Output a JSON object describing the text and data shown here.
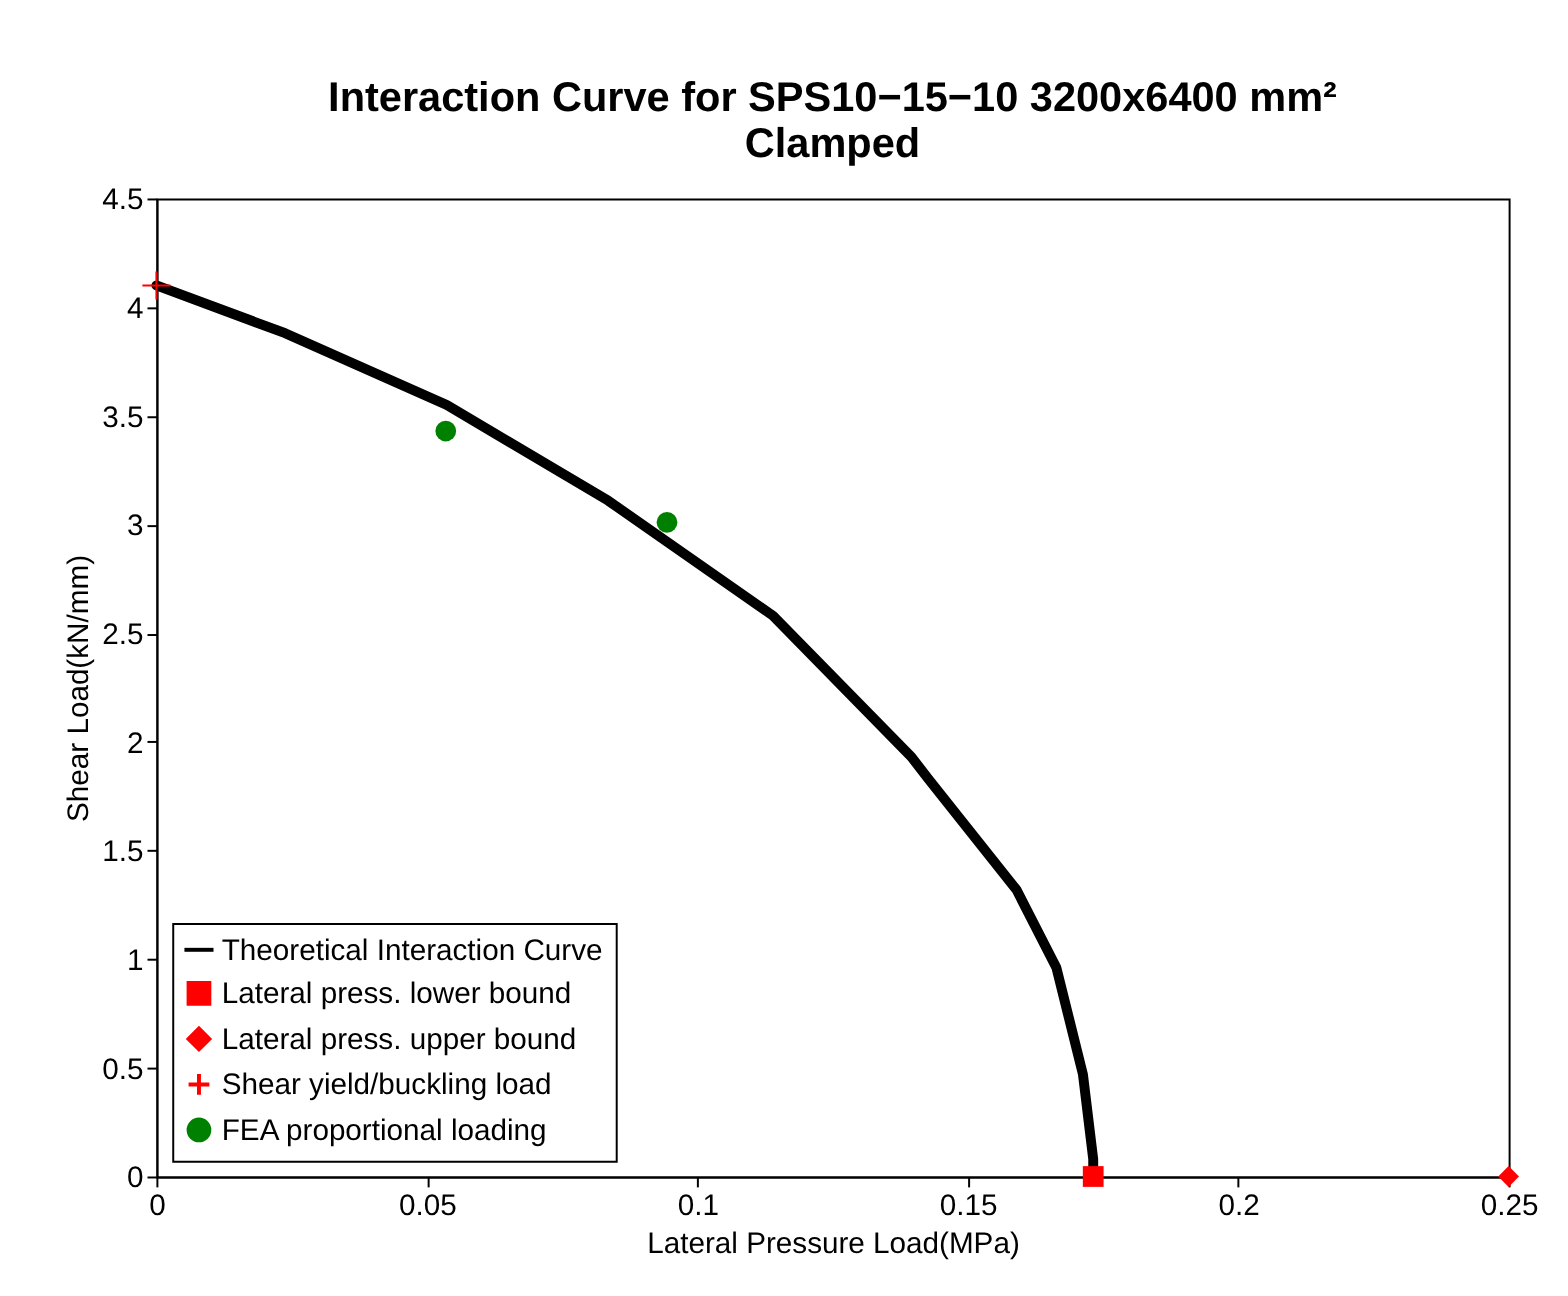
{
  "chart_data": {
    "type": "line",
    "title": "Interaction Curve for SPS10−15−10 3200x6400 mm²\nClamped",
    "xlabel": "Lateral Pressure Load(MPa)",
    "ylabel": "Shear Load(kN/mm)",
    "xlim": [
      0,
      0.25
    ],
    "ylim": [
      0,
      4.5
    ],
    "xticks": [
      0,
      0.05,
      0.1,
      0.15,
      0.2,
      0.25
    ],
    "yticks": [
      0,
      0.5,
      1,
      1.5,
      2,
      2.5,
      3,
      3.5,
      4,
      4.5
    ],
    "grid": false,
    "legend": "bottom left",
    "series": [
      {
        "name": "Theoretical Interaction Curve",
        "color": "#000000",
        "marker": "none",
        "line_style": "solid",
        "x": [
          0,
          0.0238,
          0.0537,
          0.0835,
          0.114,
          0.1396,
          0.1427,
          0.159,
          0.1664,
          0.1713,
          0.1732,
          0.1732
        ],
        "values": [
          4.1,
          3.88,
          3.55,
          3.11,
          2.58,
          1.93,
          1.83,
          1.32,
          0.96,
          0.47,
          0.08,
          0
        ]
      },
      {
        "name": "Lateral press. lower bound",
        "color": "#ff0000",
        "type": "scatter",
        "marker": "square",
        "x": [
          0.1732
        ],
        "values": [
          0
        ]
      },
      {
        "name": "Lateral press. upper bound",
        "color": "#ff0000",
        "type": "scatter",
        "marker": "diamond",
        "x": [
          0.25
        ],
        "values": [
          0
        ]
      },
      {
        "name": "Shear yield/buckling load",
        "color": "#ff0000",
        "type": "scatter",
        "marker": "cross",
        "x": [
          0
        ],
        "values": [
          4.1
        ]
      },
      {
        "name": "FEA proportional loading",
        "color": "#008000",
        "type": "scatter",
        "marker": "circle",
        "x": [
          0.0535,
          0.0944
        ],
        "values": [
          3.43,
          3.01
        ]
      }
    ]
  }
}
